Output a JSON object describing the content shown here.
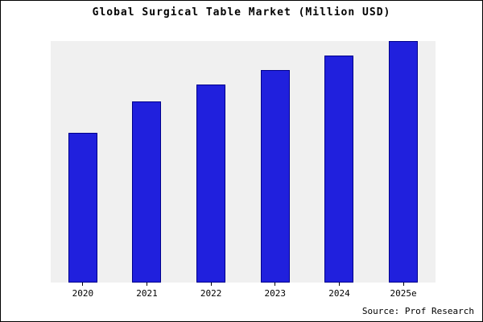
{
  "chart_data": {
    "type": "bar",
    "title": "Global Surgical Table Market (Million USD)",
    "categories": [
      "2020",
      "2021",
      "2022",
      "2023",
      "2024",
      "2025e"
    ],
    "values": [
      62,
      75,
      82,
      88,
      94,
      100
    ],
    "xlabel": "",
    "ylabel": "",
    "ylim": [
      0,
      100
    ],
    "grid": false,
    "legend_position": "none",
    "colors": {
      "bar_fill": "#2020dd",
      "bar_edge": "#00008b",
      "plot_background": "#f0f0f0",
      "frame_border": "#000000"
    }
  },
  "footer": {
    "source_label": "Source: Prof Research"
  }
}
